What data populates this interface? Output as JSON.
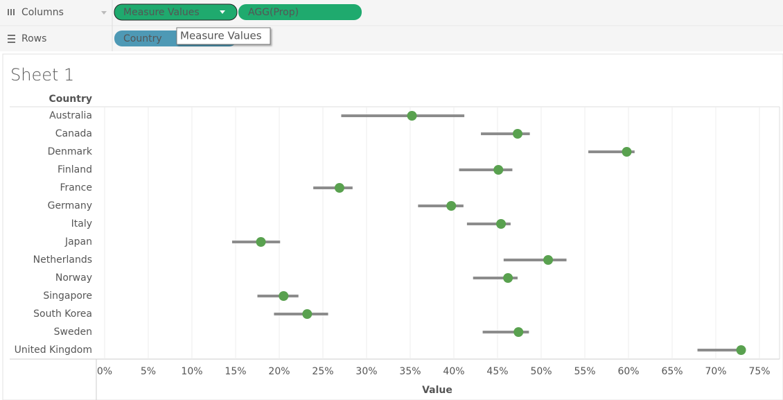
{
  "shelves": {
    "columns": {
      "label": "Columns",
      "pills": [
        "Measure Values",
        "AGG(Prop)"
      ]
    },
    "rows": {
      "label": "Rows",
      "pills": [
        "Country"
      ]
    }
  },
  "tooltip": "Measure Values",
  "sheet_title": "Sheet 1",
  "chart_data": {
    "type": "dot-range",
    "y_header": "Country",
    "x_label": "Value",
    "categories": [
      "Australia",
      "Canada",
      "Denmark",
      "Finland",
      "France",
      "Germany",
      "Italy",
      "Japan",
      "Netherlands",
      "Norway",
      "Singapore",
      "South Korea",
      "Sweden",
      "United Kingdom"
    ],
    "values": [
      35.2,
      47.3,
      59.8,
      45.1,
      26.9,
      39.7,
      45.4,
      17.9,
      50.8,
      46.2,
      20.5,
      23.2,
      47.4,
      72.9
    ],
    "low": [
      27.1,
      43.1,
      55.4,
      40.6,
      23.9,
      35.9,
      41.5,
      14.6,
      45.7,
      42.2,
      17.5,
      19.4,
      43.3,
      67.9
    ],
    "high": [
      41.2,
      48.7,
      60.7,
      46.7,
      28.4,
      41.1,
      46.5,
      20.1,
      52.9,
      47.3,
      22.2,
      25.6,
      48.6,
      72.9
    ],
    "color": "#59a14f",
    "range_color": "#8c8c8c",
    "xlim": [
      -0.95,
      77.3
    ],
    "xticks": [
      {
        "value": 0,
        "label": "0%"
      },
      {
        "value": 5,
        "label": "5%"
      },
      {
        "value": 10,
        "label": "10%"
      },
      {
        "value": 15,
        "label": "15%"
      },
      {
        "value": 20,
        "label": "20%"
      },
      {
        "value": 25,
        "label": "25%"
      },
      {
        "value": 30,
        "label": "30%"
      },
      {
        "value": 35,
        "label": "35%"
      },
      {
        "value": 40,
        "label": "40%"
      },
      {
        "value": 45,
        "label": "45%"
      },
      {
        "value": 50,
        "label": "50%"
      },
      {
        "value": 55,
        "label": "55%"
      },
      {
        "value": 60,
        "label": "60%"
      },
      {
        "value": 65,
        "label": "65%"
      },
      {
        "value": 70,
        "label": "70%"
      },
      {
        "value": 75,
        "label": "75%"
      }
    ],
    "grid": true
  }
}
